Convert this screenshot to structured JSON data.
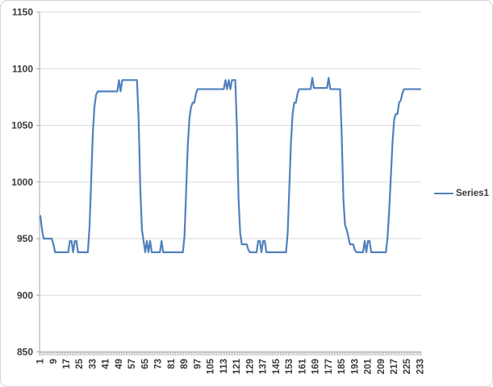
{
  "chart_data": {
    "type": "line",
    "title": "",
    "xlabel": "",
    "ylabel": "",
    "grid": true,
    "ylim": [
      850,
      1150
    ],
    "y_ticks": [
      850,
      900,
      950,
      1000,
      1050,
      1100,
      1150
    ],
    "categories_start": 1,
    "categories_end": 233,
    "x_tick_labels": [
      1,
      9,
      17,
      25,
      33,
      41,
      49,
      57,
      65,
      73,
      81,
      89,
      97,
      105,
      113,
      121,
      129,
      137,
      145,
      153,
      161,
      169,
      177,
      185,
      193,
      201,
      209,
      217,
      225,
      233
    ],
    "legend": {
      "position": "right",
      "entries": [
        "Series1"
      ]
    },
    "series": [
      {
        "name": "Series1",
        "color": "#4F81BD",
        "values": [
          970,
          958,
          950,
          950,
          950,
          950,
          950,
          950,
          945,
          938,
          938,
          938,
          938,
          938,
          938,
          938,
          938,
          938,
          948,
          948,
          938,
          948,
          948,
          938,
          938,
          938,
          938,
          938,
          938,
          938,
          960,
          1000,
          1042,
          1066,
          1077,
          1080,
          1080,
          1080,
          1080,
          1080,
          1080,
          1080,
          1080,
          1080,
          1080,
          1080,
          1080,
          1080,
          1090,
          1080,
          1090,
          1090,
          1090,
          1090,
          1090,
          1090,
          1090,
          1090,
          1090,
          1090,
          1055,
          995,
          958,
          948,
          938,
          948,
          938,
          948,
          938,
          938,
          938,
          938,
          938,
          938,
          948,
          938,
          938,
          938,
          938,
          938,
          938,
          938,
          938,
          938,
          938,
          938,
          938,
          938,
          952,
          992,
          1032,
          1056,
          1066,
          1070,
          1070,
          1078,
          1082,
          1082,
          1082,
          1082,
          1082,
          1082,
          1082,
          1082,
          1082,
          1082,
          1082,
          1082,
          1082,
          1082,
          1082,
          1082,
          1082,
          1090,
          1082,
          1090,
          1082,
          1090,
          1090,
          1090,
          1048,
          985,
          955,
          945,
          945,
          945,
          945,
          940,
          938,
          938,
          938,
          938,
          938,
          948,
          948,
          938,
          948,
          948,
          938,
          938,
          938,
          938,
          938,
          938,
          938,
          938,
          938,
          938,
          938,
          938,
          938,
          955,
          995,
          1035,
          1060,
          1070,
          1070,
          1078,
          1082,
          1082,
          1082,
          1082,
          1082,
          1082,
          1082,
          1082,
          1092,
          1083,
          1083,
          1083,
          1083,
          1083,
          1083,
          1083,
          1083,
          1083,
          1092,
          1082,
          1082,
          1082,
          1082,
          1082,
          1082,
          1082,
          1040,
          985,
          962,
          958,
          952,
          945,
          945,
          945,
          940,
          938,
          938,
          938,
          938,
          938,
          948,
          938,
          948,
          948,
          938,
          938,
          938,
          938,
          938,
          938,
          938,
          938,
          938,
          938,
          952,
          976,
          1005,
          1035,
          1055,
          1060,
          1060,
          1070,
          1072,
          1078,
          1082,
          1082,
          1082,
          1082,
          1082,
          1082,
          1082,
          1082,
          1082,
          1082,
          1082
        ]
      }
    ]
  },
  "colors": {
    "line": "#4F81BD",
    "grid": "#D9D9D9",
    "axis": "#A6A6A6",
    "text": "#3A3A3A",
    "border": "#D3D3D3",
    "background": "#FFFFFF"
  }
}
